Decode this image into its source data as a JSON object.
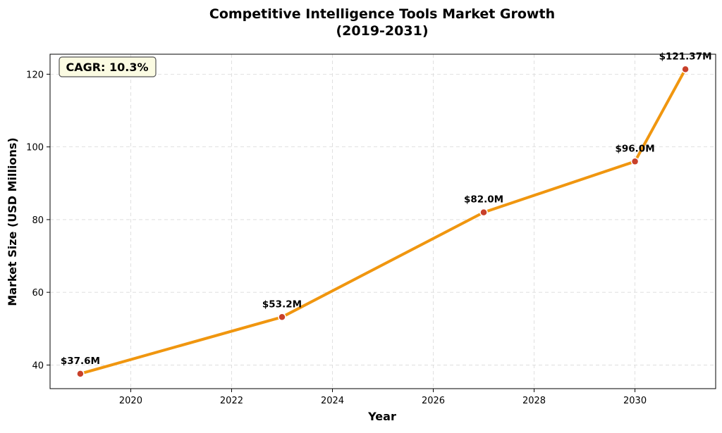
{
  "chart_data": {
    "type": "line",
    "title": "Competitive Intelligence Tools Market Growth",
    "subtitle": "(2019-2031)",
    "xlabel": "Year",
    "ylabel": "Market Size (USD Millions)",
    "x": [
      2019,
      2023,
      2027,
      2030,
      2031
    ],
    "series": [
      {
        "name": "Market Size",
        "values": [
          37.6,
          53.2,
          82.0,
          96.0,
          121.37
        ],
        "labels": [
          "$37.6M",
          "$53.2M",
          "$82.0M",
          "$96.0M",
          "$121.37M"
        ]
      }
    ],
    "xlim": [
      2018.4,
      2031.6
    ],
    "ylim": [
      33.5,
      125.5
    ],
    "xticks": [
      2020,
      2022,
      2024,
      2026,
      2028,
      2030
    ],
    "yticks": [
      40,
      60,
      80,
      100,
      120
    ],
    "xtick_labels": [
      "2020",
      "2022",
      "2024",
      "2026",
      "2028",
      "2030"
    ],
    "ytick_labels": [
      "40",
      "60",
      "80",
      "100",
      "120"
    ],
    "grid": true,
    "annotation": "CAGR: 10.3%",
    "colors": {
      "line": "#f0960f",
      "marker": "#c8402a",
      "marker_edge": "#ffffff",
      "annotation_bg": "#fbfbe2",
      "grid": "#d9d9d9"
    }
  }
}
